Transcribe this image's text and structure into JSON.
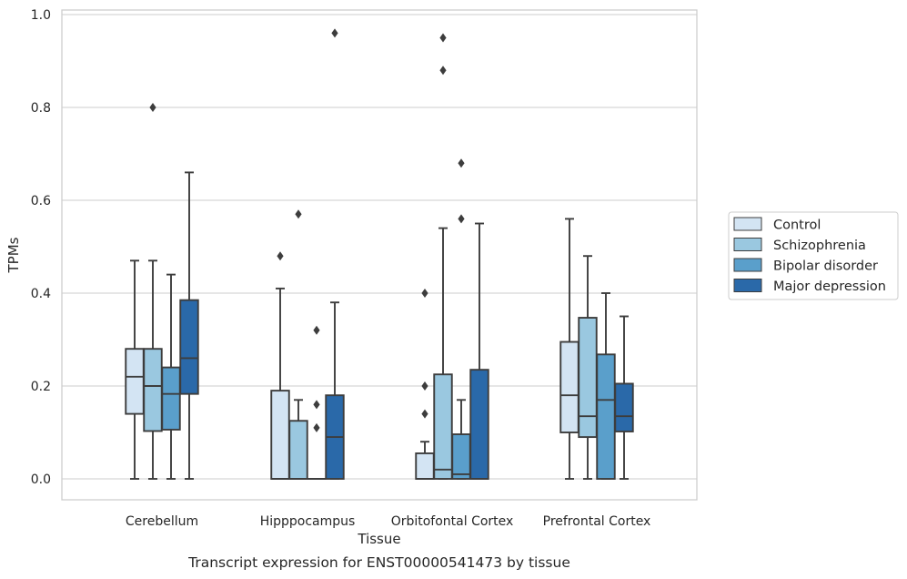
{
  "chart_data": {
    "type": "boxplot",
    "title": "",
    "caption": "Transcript expression for ENST00000541473 by tissue",
    "xlabel": "Tissue",
    "ylabel": "TPMs",
    "ylim": [
      -0.045,
      1.01
    ],
    "yticks": [
      0.0,
      0.2,
      0.4,
      0.6,
      0.8,
      1.0
    ],
    "ytick_labels": [
      "0.0",
      "0.2",
      "0.4",
      "0.6",
      "0.8",
      "1.0"
    ],
    "grid": "horizontal",
    "legend_position": "right",
    "categories": [
      "Cerebellum",
      "Hipppocampus",
      "Orbitofontal Cortex",
      "Prefrontal Cortex"
    ],
    "series": [
      {
        "name": "Control",
        "color": "#d3e4f3",
        "boxes": [
          {
            "whisker_low": 0.0,
            "q1": 0.14,
            "median": 0.22,
            "q3": 0.28,
            "whisker_high": 0.47,
            "outliers": []
          },
          {
            "whisker_low": 0.0,
            "q1": 0.0,
            "median": 0.0,
            "q3": 0.19,
            "whisker_high": 0.41,
            "outliers": [
              0.48
            ]
          },
          {
            "whisker_low": 0.0,
            "q1": 0.0,
            "median": 0.0,
            "q3": 0.055,
            "whisker_high": 0.08,
            "outliers": [
              0.14,
              0.2,
              0.4
            ]
          },
          {
            "whisker_low": 0.0,
            "q1": 0.1,
            "median": 0.18,
            "q3": 0.295,
            "whisker_high": 0.56,
            "outliers": []
          }
        ]
      },
      {
        "name": "Schizophrenia",
        "color": "#9ac8e0",
        "boxes": [
          {
            "whisker_low": 0.0,
            "q1": 0.103,
            "median": 0.2,
            "q3": 0.28,
            "whisker_high": 0.47,
            "outliers": [
              0.8
            ]
          },
          {
            "whisker_low": 0.0,
            "q1": 0.0,
            "median": 0.0,
            "q3": 0.125,
            "whisker_high": 0.17,
            "outliers": [
              0.57
            ]
          },
          {
            "whisker_low": 0.0,
            "q1": 0.0,
            "median": 0.02,
            "q3": 0.225,
            "whisker_high": 0.54,
            "outliers": [
              0.88,
              0.95
            ]
          },
          {
            "whisker_low": 0.0,
            "q1": 0.09,
            "median": 0.135,
            "q3": 0.347,
            "whisker_high": 0.48,
            "outliers": []
          }
        ]
      },
      {
        "name": "Bipolar disorder",
        "color": "#5a9fcb",
        "boxes": [
          {
            "whisker_low": 0.0,
            "q1": 0.106,
            "median": 0.183,
            "q3": 0.24,
            "whisker_high": 0.44,
            "outliers": []
          },
          {
            "whisker_low": 0.0,
            "q1": 0.0,
            "median": 0.0,
            "q3": 0.0,
            "whisker_high": 0.0,
            "outliers": [
              0.11,
              0.16,
              0.32
            ]
          },
          {
            "whisker_low": 0.0,
            "q1": 0.0,
            "median": 0.01,
            "q3": 0.096,
            "whisker_high": 0.17,
            "outliers": [
              0.56,
              0.68
            ]
          },
          {
            "whisker_low": 0.0,
            "q1": 0.0,
            "median": 0.17,
            "q3": 0.268,
            "whisker_high": 0.4,
            "outliers": []
          }
        ]
      },
      {
        "name": "Major depression",
        "color": "#2a69a9",
        "boxes": [
          {
            "whisker_low": 0.0,
            "q1": 0.183,
            "median": 0.26,
            "q3": 0.385,
            "whisker_high": 0.66,
            "outliers": []
          },
          {
            "whisker_low": 0.0,
            "q1": 0.0,
            "median": 0.09,
            "q3": 0.18,
            "whisker_high": 0.38,
            "outliers": [
              0.96
            ]
          },
          {
            "whisker_low": 0.0,
            "q1": 0.0,
            "median": 0.0,
            "q3": 0.235,
            "whisker_high": 0.55,
            "outliers": []
          },
          {
            "whisker_low": 0.0,
            "q1": 0.102,
            "median": 0.135,
            "q3": 0.205,
            "whisker_high": 0.35,
            "outliers": []
          }
        ]
      }
    ]
  }
}
